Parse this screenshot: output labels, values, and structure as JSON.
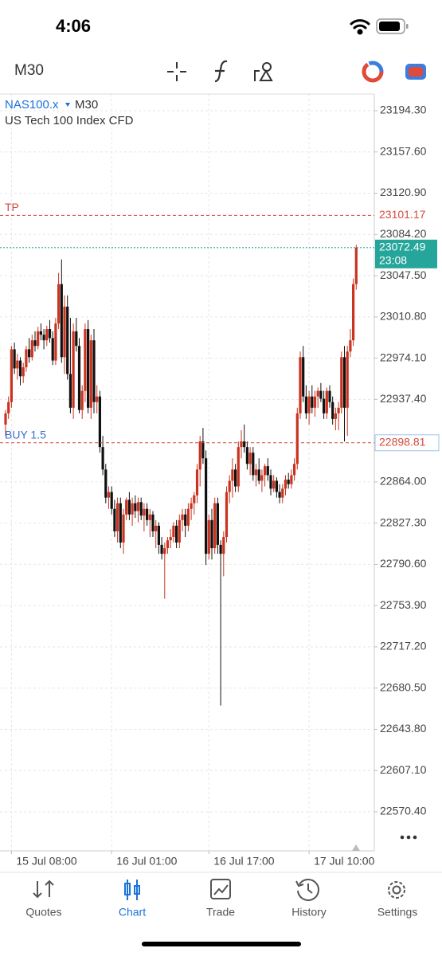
{
  "status_bar": {
    "time": "4:06"
  },
  "toolbar": {
    "timeframe": "M30"
  },
  "chart_data": {
    "type": "candlestick",
    "symbol": "NAS100.x",
    "timeframe": "M30",
    "description": "US Tech 100 Index CFD",
    "categories": [
      null,
      null,
      "15 Jul 08:00",
      null,
      null,
      null,
      null,
      null,
      null,
      null,
      null,
      null,
      null,
      null,
      null,
      null,
      null,
      null,
      null,
      null,
      null,
      null,
      null,
      null,
      null,
      null,
      null,
      null,
      null,
      null,
      null,
      null,
      null,
      null,
      null,
      null,
      "16 Jul 01:00",
      null,
      null,
      null,
      null,
      null,
      null,
      null,
      null,
      null,
      null,
      null,
      null,
      null,
      null,
      null,
      null,
      null,
      null,
      null,
      null,
      null,
      null,
      null,
      null,
      null,
      null,
      null,
      null,
      null,
      null,
      null,
      null,
      "16 Jul 17:00",
      null,
      null,
      null,
      null,
      null,
      null,
      null,
      null,
      null,
      null,
      null,
      null,
      null,
      null,
      null,
      null,
      null,
      null,
      null,
      null,
      null,
      null,
      null,
      null,
      null,
      null,
      null,
      null,
      null,
      null,
      null,
      null,
      null,
      "17 Jul 10:00",
      null,
      null,
      null,
      null,
      null,
      null,
      null,
      null,
      null,
      null,
      null,
      null,
      null,
      null,
      null,
      null
    ],
    "open": [
      22915,
      22925,
      22935,
      22982,
      22965,
      22972,
      22958,
      22966,
      22982,
      22975,
      22990,
      22985,
      22998,
      22995,
      22990,
      23000,
      22992,
      22972,
      23005,
      23040,
      22975,
      23020,
      22960,
      22930,
      22998,
      22985,
      22928,
      22945,
      23000,
      22930,
      22990,
      22935,
      22940,
      22895,
      22875,
      22850,
      22855,
      22840,
      22820,
      22845,
      22810,
      22835,
      22848,
      22835,
      22845,
      22838,
      22846,
      22834,
      22840,
      22830,
      22835,
      22820,
      22825,
      22808,
      22800,
      22805,
      22812,
      22815,
      22825,
      22810,
      22830,
      22835,
      22825,
      22840,
      22845,
      22852,
      22875,
      22900,
      22885,
      22800,
      22830,
      22805,
      22845,
      22808,
      22800,
      22815,
      22855,
      22865,
      22875,
      22860,
      22895,
      22900,
      22895,
      22880,
      22890,
      22870,
      22875,
      22865,
      22870,
      22878,
      22870,
      22858,
      22865,
      22855,
      22850,
      22858,
      22866,
      22862,
      22870,
      22880,
      22925,
      22975,
      22940,
      22925,
      22940,
      22930,
      22940,
      22945,
      22938,
      22925,
      22945,
      22935,
      22920,
      22925,
      22930,
      22975,
      22930,
      22980,
      22990,
      23040
    ],
    "high": [
      22928,
      22940,
      22985,
      22988,
      22978,
      22975,
      22970,
      22985,
      22992,
      22995,
      22998,
      23002,
      23005,
      23000,
      23003,
      23008,
      22998,
      23010,
      23050,
      23062,
      23030,
      23030,
      23010,
      23005,
      23010,
      22992,
      22950,
      23005,
      23008,
      22995,
      23000,
      22950,
      22945,
      22905,
      22880,
      22860,
      22860,
      22848,
      22850,
      22850,
      22840,
      22850,
      22855,
      22850,
      22852,
      22850,
      22850,
      22845,
      22845,
      22840,
      22838,
      22830,
      22828,
      22815,
      22810,
      22815,
      22822,
      22828,
      22830,
      22835,
      22840,
      22840,
      22845,
      22850,
      22855,
      22880,
      22905,
      22912,
      22892,
      22835,
      22840,
      22850,
      22850,
      22812,
      22820,
      22860,
      22870,
      22885,
      22880,
      22900,
      22910,
      22915,
      22900,
      22895,
      22895,
      22880,
      22885,
      22875,
      22880,
      22885,
      22875,
      22870,
      22868,
      22862,
      22862,
      22870,
      22872,
      22875,
      22885,
      22930,
      22980,
      22985,
      22950,
      22945,
      22950,
      22945,
      22948,
      22952,
      22945,
      22948,
      22950,
      22940,
      22930,
      22935,
      22980,
      22985,
      22985,
      23000,
      23045,
      23075
    ],
    "low": [
      22905,
      22920,
      22930,
      22960,
      22955,
      22950,
      22952,
      22962,
      22970,
      22972,
      22980,
      22982,
      22990,
      22982,
      22985,
      22988,
      22968,
      22968,
      23000,
      22970,
      22960,
      22955,
      22925,
      22920,
      22980,
      22925,
      22920,
      22935,
      22925,
      22920,
      22925,
      22925,
      22890,
      22870,
      22845,
      22840,
      22835,
      22815,
      22810,
      22805,
      22800,
      22830,
      22830,
      22825,
      22832,
      22828,
      22830,
      22820,
      22825,
      22815,
      22815,
      22805,
      22800,
      22795,
      22760,
      22800,
      22805,
      22810,
      22805,
      22805,
      22820,
      22815,
      22820,
      22830,
      22835,
      22845,
      22860,
      22880,
      22790,
      22795,
      22795,
      22800,
      22800,
      22665,
      22780,
      22810,
      22845,
      22850,
      22855,
      22855,
      22885,
      22890,
      22875,
      22870,
      22865,
      22860,
      22862,
      22855,
      22860,
      22865,
      22852,
      22855,
      22850,
      22845,
      22845,
      22852,
      22858,
      22858,
      22865,
      22875,
      22920,
      22935,
      22920,
      22915,
      22925,
      22922,
      22930,
      22935,
      22920,
      22920,
      22930,
      22915,
      22910,
      22910,
      22925,
      22900,
      22905,
      22975,
      22985,
      23035
    ],
    "close": [
      22925,
      22935,
      22982,
      22965,
      22972,
      22958,
      22966,
      22982,
      22975,
      22990,
      22985,
      22998,
      22995,
      22990,
      23000,
      22992,
      22972,
      23005,
      23040,
      22975,
      23020,
      22960,
      22930,
      22998,
      22985,
      22928,
      22945,
      23000,
      22930,
      22990,
      22935,
      22940,
      22895,
      22875,
      22850,
      22855,
      22840,
      22820,
      22845,
      22810,
      22835,
      22848,
      22835,
      22845,
      22838,
      22846,
      22834,
      22840,
      22830,
      22835,
      22820,
      22825,
      22808,
      22800,
      22805,
      22812,
      22815,
      22825,
      22810,
      22830,
      22835,
      22825,
      22840,
      22845,
      22852,
      22875,
      22900,
      22885,
      22800,
      22830,
      22805,
      22845,
      22808,
      22800,
      22815,
      22855,
      22865,
      22875,
      22860,
      22895,
      22900,
      22895,
      22880,
      22890,
      22870,
      22875,
      22865,
      22870,
      22878,
      22870,
      22858,
      22865,
      22855,
      22850,
      22858,
      22866,
      22862,
      22870,
      22880,
      22925,
      22975,
      22940,
      22925,
      22940,
      22930,
      22940,
      22945,
      22938,
      22925,
      22945,
      22935,
      22920,
      22925,
      22930,
      22975,
      22930,
      22980,
      22990,
      23040,
      23072.49
    ],
    "up_color": "#c9331f",
    "down_color": "#111111",
    "ylim": [
      22535.66,
      23209.19
    ],
    "yticks": [
      {
        "value": 23194.3,
        "label": "23194.30"
      },
      {
        "value": 23157.6,
        "label": "23157.60"
      },
      {
        "value": 23120.9,
        "label": "23120.90"
      },
      {
        "value": 23084.2,
        "label": "23084.20"
      },
      {
        "value": 23047.5,
        "label": "23047.50"
      },
      {
        "value": 23010.8,
        "label": "23010.80"
      },
      {
        "value": 22974.1,
        "label": "22974.10"
      },
      {
        "value": 22937.4,
        "label": "22937.40"
      },
      {
        "value": 22864,
        "label": "22864.00"
      },
      {
        "value": 22827.3,
        "label": "22827.30"
      },
      {
        "value": 22790.6,
        "label": "22790.60"
      },
      {
        "value": 22753.9,
        "label": "22753.90"
      },
      {
        "value": 22717.2,
        "label": "22717.20"
      },
      {
        "value": 22680.5,
        "label": "22680.50"
      },
      {
        "value": 22643.8,
        "label": "22643.80"
      },
      {
        "value": 22607.1,
        "label": "22607.10"
      },
      {
        "value": 22570.4,
        "label": "22570.40"
      }
    ],
    "grid": true,
    "levels": [
      {
        "label": "TP",
        "value": 23101.17,
        "color": "#d24b3e"
      },
      {
        "label": "BUY 1.5",
        "value": 22898.81,
        "color": "#d24b3e"
      }
    ],
    "last_price": {
      "value": 23072.49,
      "timer": "23:08",
      "color": "#26a69a"
    }
  },
  "tabs": [
    "Quotes",
    "Chart",
    "Trade",
    "History",
    "Settings"
  ],
  "active_tab": 1
}
